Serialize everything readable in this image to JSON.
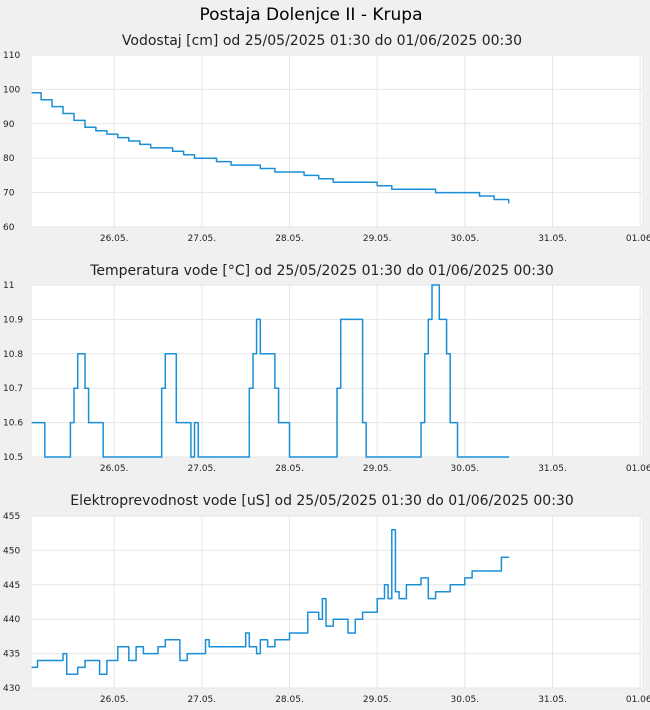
{
  "title": "Postaja Dolenjce II - Krupa",
  "chart_data": [
    {
      "type": "line",
      "title": "Vodostaj [cm] od 25/05/2025 01:30 do 01/06/2025 00:30",
      "x_start": "2025-05-25T01:30",
      "x_end": "2025-06-01T00:30",
      "xticks": [
        "26.05.",
        "27.05.",
        "28.05.",
        "29.05.",
        "30.05.",
        "31.05.",
        "01.06."
      ],
      "ylim": [
        60,
        110
      ],
      "yticks": [
        "60",
        "70",
        "80",
        "90",
        "100",
        "110"
      ],
      "grid": true,
      "x": [
        "2025-05-25T01:30",
        "2025-05-25T04:00",
        "2025-05-25T07:00",
        "2025-05-25T10:00",
        "2025-05-25T13:00",
        "2025-05-25T16:00",
        "2025-05-25T19:00",
        "2025-05-25T22:00",
        "2025-05-26T01:00",
        "2025-05-26T04:00",
        "2025-05-26T07:00",
        "2025-05-26T10:00",
        "2025-05-26T13:00",
        "2025-05-26T16:00",
        "2025-05-26T19:00",
        "2025-05-26T22:00",
        "2025-05-27T01:00",
        "2025-05-27T04:00",
        "2025-05-27T08:00",
        "2025-05-27T12:00",
        "2025-05-27T16:00",
        "2025-05-27T20:00",
        "2025-05-28T00:00",
        "2025-05-28T04:00",
        "2025-05-28T08:00",
        "2025-05-28T12:00",
        "2025-05-28T16:00",
        "2025-05-28T20:00",
        "2025-05-29T00:00",
        "2025-05-29T04:00",
        "2025-05-29T08:00",
        "2025-05-29T12:00",
        "2025-05-29T16:00",
        "2025-05-29T20:00",
        "2025-05-30T00:00",
        "2025-05-30T04:00",
        "2025-05-30T08:00",
        "2025-05-30T12:00"
      ],
      "series": [
        {
          "color": "#1b8fd6",
          "values": [
            99,
            97,
            95,
            93,
            91,
            89,
            88,
            87,
            86,
            85,
            84,
            83,
            83,
            82,
            81,
            80,
            80,
            79,
            78,
            78,
            77,
            76,
            76,
            75,
            74,
            73,
            73,
            73,
            72,
            71,
            71,
            71,
            70,
            70,
            70,
            69,
            68,
            67
          ]
        }
      ]
    },
    {
      "type": "line",
      "title": "Temperatura vode [°C] od 25/05/2025 01:30 do 01/06/2025 00:30",
      "x_start": "2025-05-25T01:30",
      "x_end": "2025-06-01T00:30",
      "xticks": [
        "26.05.",
        "27.05.",
        "28.05.",
        "29.05.",
        "30.05.",
        "31.05.",
        "01.06."
      ],
      "ylim": [
        10.5,
        11
      ],
      "yticks": [
        "10.5",
        "10.6",
        "10.7",
        "10.8",
        "10.9",
        "11"
      ],
      "grid": true,
      "x": [
        "2025-05-25T01:30",
        "2025-05-25T04:00",
        "2025-05-25T05:00",
        "2025-05-25T10:00",
        "2025-05-25T12:00",
        "2025-05-25T13:00",
        "2025-05-25T14:00",
        "2025-05-25T15:00",
        "2025-05-25T16:00",
        "2025-05-25T17:00",
        "2025-05-25T20:00",
        "2025-05-25T21:00",
        "2025-05-25T22:00",
        "2025-05-26T02:00",
        "2025-05-26T03:00",
        "2025-05-26T12:00",
        "2025-05-26T13:00",
        "2025-05-26T14:00",
        "2025-05-26T15:00",
        "2025-05-26T17:00",
        "2025-05-26T20:00",
        "2025-05-26T21:00",
        "2025-05-26T22:00",
        "2025-05-26T23:00",
        "2025-05-27T01:00",
        "2025-05-27T02:00",
        "2025-05-27T03:00",
        "2025-05-27T12:00",
        "2025-05-27T13:00",
        "2025-05-27T14:00",
        "2025-05-27T15:00",
        "2025-05-27T16:00",
        "2025-05-27T17:00",
        "2025-05-27T20:00",
        "2025-05-27T21:00",
        "2025-05-27T23:00",
        "2025-05-28T00:00",
        "2025-05-28T12:00",
        "2025-05-28T13:00",
        "2025-05-28T14:00",
        "2025-05-28T15:00",
        "2025-05-28T16:00",
        "2025-05-28T20:00",
        "2025-05-28T21:00",
        "2025-05-28T23:00",
        "2025-05-29T00:00",
        "2025-05-29T12:00",
        "2025-05-29T13:00",
        "2025-05-29T14:00",
        "2025-05-29T15:00",
        "2025-05-29T16:00",
        "2025-05-29T17:00",
        "2025-05-29T19:00",
        "2025-05-29T20:00",
        "2025-05-29T22:00",
        "2025-05-29T23:00",
        "2025-05-30T00:00",
        "2025-05-30T12:00"
      ],
      "series": [
        {
          "color": "#1b8fd6",
          "values": [
            10.6,
            10.6,
            10.5,
            10.5,
            10.6,
            10.7,
            10.8,
            10.8,
            10.7,
            10.6,
            10.6,
            10.5,
            10.5,
            10.5,
            10.5,
            10.5,
            10.7,
            10.8,
            10.8,
            10.6,
            10.6,
            10.5,
            10.6,
            10.5,
            10.5,
            10.5,
            10.5,
            10.5,
            10.7,
            10.8,
            10.9,
            10.8,
            10.8,
            10.7,
            10.6,
            10.6,
            10.5,
            10.5,
            10.7,
            10.9,
            10.9,
            10.9,
            10.6,
            10.5,
            10.5,
            10.5,
            10.6,
            10.8,
            10.9,
            11,
            11,
            10.9,
            10.8,
            10.6,
            10.5,
            10.5,
            10.5,
            10.5
          ]
        }
      ]
    },
    {
      "type": "line",
      "title": "Elektroprevodnost vode [uS] od 25/05/2025 01:30 do 01/06/2025 00:30",
      "x_start": "2025-05-25T01:30",
      "x_end": "2025-06-01T00:30",
      "xticks": [
        "26.05.",
        "27.05.",
        "28.05.",
        "29.05.",
        "30.05.",
        "31.05.",
        "01.06."
      ],
      "ylim": [
        430,
        455
      ],
      "yticks": [
        "430",
        "435",
        "440",
        "445",
        "450",
        "455"
      ],
      "grid": true,
      "x": [
        "2025-05-25T01:30",
        "2025-05-25T03:00",
        "2025-05-25T08:00",
        "2025-05-25T10:00",
        "2025-05-25T11:00",
        "2025-05-25T14:00",
        "2025-05-25T16:00",
        "2025-05-25T20:00",
        "2025-05-25T22:00",
        "2025-05-26T01:00",
        "2025-05-26T04:00",
        "2025-05-26T06:00",
        "2025-05-26T08:00",
        "2025-05-26T12:00",
        "2025-05-26T14:00",
        "2025-05-26T18:00",
        "2025-05-26T20:00",
        "2025-05-26T23:00",
        "2025-05-27T01:00",
        "2025-05-27T02:00",
        "2025-05-27T05:00",
        "2025-05-27T10:00",
        "2025-05-27T12:00",
        "2025-05-27T13:00",
        "2025-05-27T15:00",
        "2025-05-27T16:00",
        "2025-05-27T18:00",
        "2025-05-27T20:00",
        "2025-05-28T00:00",
        "2025-05-28T04:00",
        "2025-05-28T05:00",
        "2025-05-28T08:00",
        "2025-05-28T09:00",
        "2025-05-28T10:00",
        "2025-05-28T12:00",
        "2025-05-28T16:00",
        "2025-05-28T18:00",
        "2025-05-28T20:00",
        "2025-05-29T00:00",
        "2025-05-29T02:00",
        "2025-05-29T03:00",
        "2025-05-29T04:00",
        "2025-05-29T05:00",
        "2025-05-29T06:00",
        "2025-05-29T08:00",
        "2025-05-29T12:00",
        "2025-05-29T14:00",
        "2025-05-29T16:00",
        "2025-05-29T18:00",
        "2025-05-29T20:00",
        "2025-05-30T00:00",
        "2025-05-30T02:00",
        "2025-05-30T08:00",
        "2025-05-30T10:00",
        "2025-05-30T12:00"
      ],
      "series": [
        {
          "color": "#1b8fd6",
          "values": [
            433,
            434,
            434,
            435,
            432,
            433,
            434,
            432,
            434,
            436,
            434,
            436,
            435,
            436,
            437,
            434,
            435,
            435,
            437,
            436,
            436,
            436,
            438,
            436,
            435,
            437,
            436,
            437,
            438,
            438,
            441,
            440,
            443,
            439,
            440,
            438,
            440,
            441,
            443,
            445,
            443,
            453,
            444,
            443,
            445,
            446,
            443,
            444,
            444,
            445,
            446,
            447,
            447,
            449,
            449
          ]
        }
      ]
    }
  ]
}
